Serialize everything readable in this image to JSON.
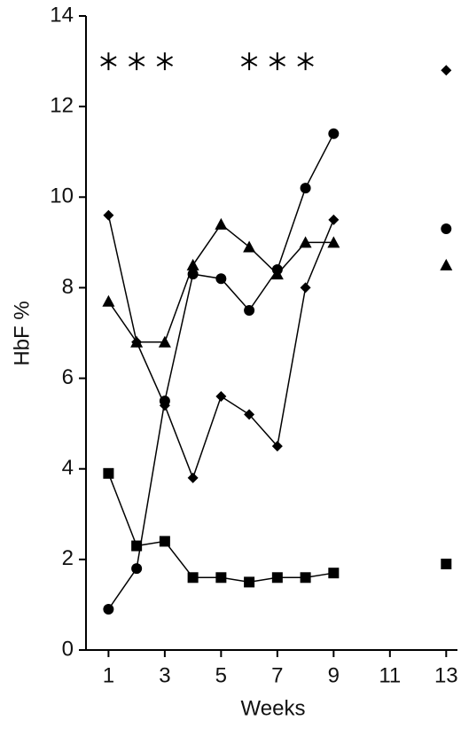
{
  "chart_data": {
    "type": "line",
    "x_label": "Weeks",
    "y_label": "HbF %",
    "x": [
      1,
      2,
      3,
      4,
      5,
      6,
      7,
      8,
      9,
      10,
      11,
      12,
      13
    ],
    "series": [
      {
        "marker": "diamond",
        "color": "#000000",
        "values": [
          9.6,
          6.8,
          5.4,
          3.8,
          5.6,
          5.2,
          4.5,
          8.0,
          9.5,
          null,
          null,
          null,
          12.8
        ]
      },
      {
        "marker": "circle",
        "color": "#000000",
        "values": [
          0.9,
          1.8,
          5.5,
          8.3,
          8.2,
          7.5,
          8.4,
          10.2,
          11.4,
          null,
          null,
          null,
          9.3
        ]
      },
      {
        "marker": "triangle",
        "color": "#000000",
        "values": [
          7.7,
          6.8,
          6.8,
          8.5,
          9.4,
          8.9,
          8.3,
          9.0,
          9.0,
          null,
          null,
          null,
          8.5
        ]
      },
      {
        "marker": "square",
        "color": "#000000",
        "values": [
          3.9,
          2.3,
          2.4,
          1.6,
          1.6,
          1.5,
          1.6,
          1.6,
          1.7,
          null,
          null,
          null,
          1.9
        ]
      }
    ],
    "asterisks": {
      "x": [
        1,
        2,
        3,
        6,
        7,
        8
      ],
      "y": 13
    },
    "xlim": [
      0.2,
      13.4
    ],
    "ylim": [
      0,
      14
    ],
    "xticks": [
      1,
      3,
      5,
      7,
      9,
      11,
      13
    ],
    "yticks": [
      0,
      2,
      4,
      6,
      8,
      10,
      12,
      14
    ]
  }
}
